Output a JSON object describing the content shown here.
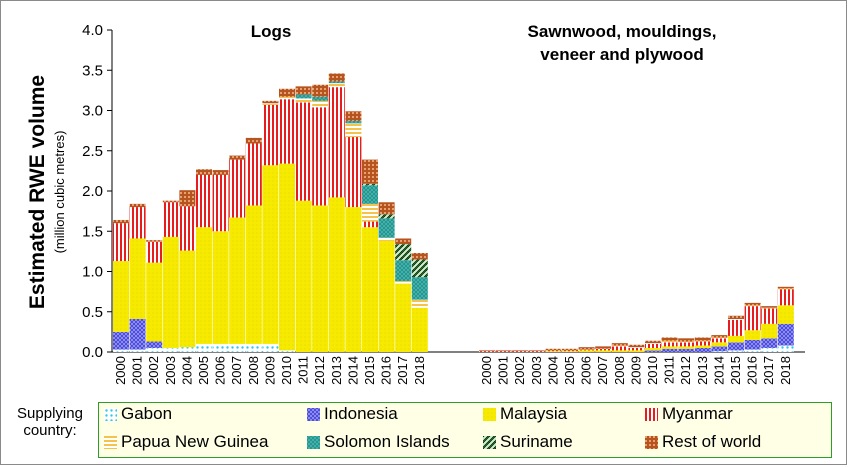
{
  "chart_data": {
    "type": "bar",
    "stacked": true,
    "panels": [
      {
        "title_lines": [
          "Logs"
        ]
      },
      {
        "title_lines": [
          "Sawnwood, mouldings,",
          "veneer and plywood"
        ]
      }
    ],
    "categories": [
      "2000",
      "2001",
      "2002",
      "2003",
      "2004",
      "2005",
      "2006",
      "2007",
      "2008",
      "2009",
      "2010",
      "2011",
      "2012",
      "2013",
      "2014",
      "2015",
      "2016",
      "2017",
      "2018"
    ],
    "ylabel": "Estimated RWE volume",
    "ylabel_sub": "(million  cubic metres)",
    "ylim": [
      0,
      4.0
    ],
    "yticks": [
      "0.0",
      "0.5",
      "1.0",
      "1.5",
      "2.0",
      "2.5",
      "3.0",
      "3.5",
      "4.0"
    ],
    "legend_title": [
      "Supplying",
      "country:"
    ],
    "series": [
      {
        "name": "Gabon",
        "color": "#33c7f0",
        "pattern": "dots",
        "logs": [
          0.03,
          0.03,
          0.05,
          0.05,
          0.06,
          0.1,
          0.1,
          0.1,
          0.1,
          0.1,
          0.02,
          0,
          0,
          0,
          0,
          0,
          0,
          0,
          0
        ],
        "processed": [
          0,
          0,
          0,
          0,
          0,
          0,
          0,
          0,
          0,
          0,
          0,
          0,
          0,
          0,
          0.01,
          0.02,
          0.03,
          0.05,
          0.08
        ]
      },
      {
        "name": "Indonesia",
        "color": "#3f3fcc",
        "pattern": "crosshatch",
        "logs": [
          0.22,
          0.38,
          0.08,
          0,
          0,
          0,
          0,
          0,
          0,
          0,
          0,
          0,
          0,
          0,
          0,
          0,
          0,
          0,
          0
        ],
        "processed": [
          0,
          0,
          0,
          0,
          0,
          0,
          0,
          0,
          0,
          0,
          0.02,
          0.04,
          0.04,
          0.05,
          0.06,
          0.1,
          0.12,
          0.12,
          0.27
        ]
      },
      {
        "name": "Malaysia",
        "color": "#f6ea00",
        "pattern": "dots-dense",
        "logs": [
          0.88,
          1.0,
          0.98,
          1.38,
          1.2,
          1.45,
          1.4,
          1.57,
          1.72,
          2.22,
          2.32,
          1.88,
          1.82,
          1.92,
          1.8,
          1.55,
          1.38,
          0.85,
          0.55
        ],
        "processed": [
          0,
          0,
          0,
          0,
          0.01,
          0.01,
          0.02,
          0.02,
          0.02,
          0.02,
          0.03,
          0.03,
          0.03,
          0.03,
          0.05,
          0.08,
          0.12,
          0.18,
          0.23
        ]
      },
      {
        "name": "Myanmar",
        "color": "#e81c1c",
        "pattern": "vertical",
        "logs": [
          0.47,
          0.39,
          0.26,
          0.43,
          0.55,
          0.65,
          0.7,
          0.72,
          0.77,
          0.75,
          0.8,
          1.22,
          1.22,
          1.37,
          0.87,
          0.07,
          0,
          0,
          0
        ],
        "processed": [
          0.01,
          0.01,
          0.01,
          0.01,
          0.01,
          0.01,
          0.01,
          0.02,
          0.05,
          0.03,
          0.05,
          0.05,
          0.05,
          0.05,
          0.05,
          0.2,
          0.3,
          0.19,
          0.2
        ]
      },
      {
        "name": "Papua New Guinea",
        "color": "#f5c24a",
        "pattern": "horizontal",
        "logs": [
          0,
          0,
          0,
          0,
          0,
          0,
          0,
          0,
          0,
          0.02,
          0.03,
          0.05,
          0.08,
          0.05,
          0.17,
          0.22,
          0.04,
          0.03,
          0.1
        ],
        "processed": [
          0,
          0,
          0,
          0,
          0,
          0,
          0,
          0,
          0.01,
          0.01,
          0.01,
          0.02,
          0.01,
          0.01,
          0.01,
          0.01,
          0.01,
          0.01,
          0.01
        ]
      },
      {
        "name": "Solomon Islands",
        "color": "#3fbcb5",
        "pattern": "crosshatch",
        "logs": [
          0,
          0,
          0,
          0,
          0,
          0,
          0,
          0,
          0,
          0,
          0,
          0.05,
          0.05,
          0.02,
          0.03,
          0.23,
          0.24,
          0.26,
          0.28
        ],
        "processed": [
          0,
          0,
          0,
          0,
          0,
          0,
          0,
          0,
          0,
          0,
          0,
          0,
          0,
          0,
          0,
          0,
          0,
          0,
          0
        ]
      },
      {
        "name": "Suriname",
        "color": "#1f7f1f",
        "pattern": "diagonal",
        "logs": [
          0,
          0,
          0,
          0,
          0,
          0,
          0,
          0,
          0,
          0,
          0,
          0,
          0,
          0,
          0,
          0.02,
          0.05,
          0.2,
          0.22
        ],
        "processed": [
          0,
          0,
          0,
          0,
          0,
          0,
          0,
          0,
          0,
          0,
          0,
          0,
          0,
          0,
          0,
          0,
          0,
          0,
          0
        ]
      },
      {
        "name": "Rest of world",
        "color": "#b5541f",
        "pattern": "brick",
        "logs": [
          0.04,
          0.04,
          0.02,
          0.02,
          0.2,
          0.07,
          0.06,
          0.05,
          0.07,
          0.03,
          0.1,
          0.1,
          0.15,
          0.1,
          0.12,
          0.3,
          0.15,
          0.07,
          0.08
        ],
        "processed": [
          0.01,
          0.01,
          0.01,
          0.01,
          0.02,
          0.02,
          0.03,
          0.03,
          0.03,
          0.03,
          0.03,
          0.04,
          0.04,
          0.04,
          0.03,
          0.04,
          0.03,
          0.02,
          0.02
        ]
      }
    ]
  }
}
